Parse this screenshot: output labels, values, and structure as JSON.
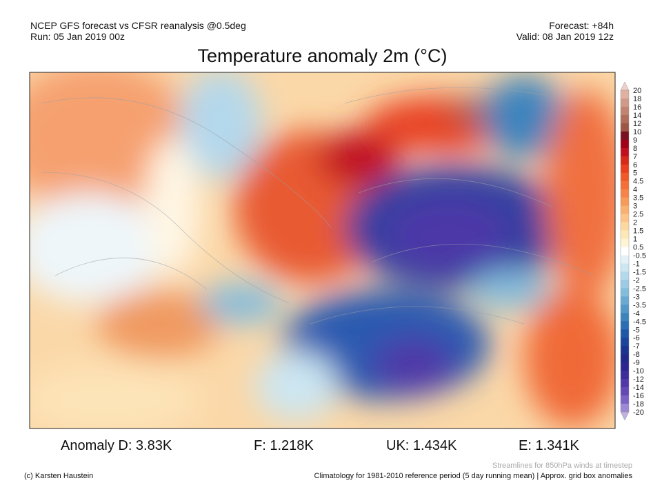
{
  "header": {
    "left": [
      "NCEP GFS forecast vs CFSR reanalysis @0.5deg",
      "Run: 05 Jan 2019 00z"
    ],
    "right": [
      "Forecast: +84h",
      "Valid: 08 Jan 2019 12z"
    ]
  },
  "title": "Temperature anomaly 2m (°C)",
  "colorbar": {
    "labels": [
      20,
      18,
      16,
      14,
      12,
      10,
      9,
      8,
      7,
      6,
      5,
      4.5,
      4,
      3.5,
      3,
      2.5,
      2,
      1.5,
      1,
      0.5,
      -0.5,
      -1,
      -1.5,
      -2,
      -2.5,
      -3,
      -3.5,
      -4,
      -4.5,
      -5,
      -6,
      -7,
      -8,
      -9,
      -10,
      -12,
      -14,
      -16,
      -18,
      -20
    ],
    "colors": [
      "#f0d0c8",
      "#e0b0a0",
      "#d09a88",
      "#c08470",
      "#b06e5a",
      "#9c5844",
      "#7a1020",
      "#a00018",
      "#c01020",
      "#d82818",
      "#e84020",
      "#f05a28",
      "#f47038",
      "#f68448",
      "#f89a58",
      "#fab070",
      "#fcc488",
      "#fdd8a0",
      "#fee8b8",
      "#fff4d4",
      "#ffffff",
      "#e4f2f8",
      "#cce6f2",
      "#b4d8ec",
      "#9ccae4",
      "#84bcdc",
      "#6aaad2",
      "#5298c8",
      "#3c84be",
      "#2c6eb4",
      "#2058a8",
      "#1c449c",
      "#1a3490",
      "#202888",
      "#2c2490",
      "#3c2c9c",
      "#5038a8",
      "#6448b4",
      "#7c62c4",
      "#9c88d4",
      "#c0b0e4"
    ]
  },
  "anomalies": [
    "Anomaly D: 3.83K",
    "F: 1.218K",
    "UK: 1.434K",
    "E: 1.341K"
  ],
  "footer": {
    "note": "Streamlines for 850hPa winds at timestep",
    "credit": "(c) Karsten Haustein",
    "climatology": "Climatology for 1981-2010 reference period (5 day running mean) | Approx. grid box anomalies"
  }
}
